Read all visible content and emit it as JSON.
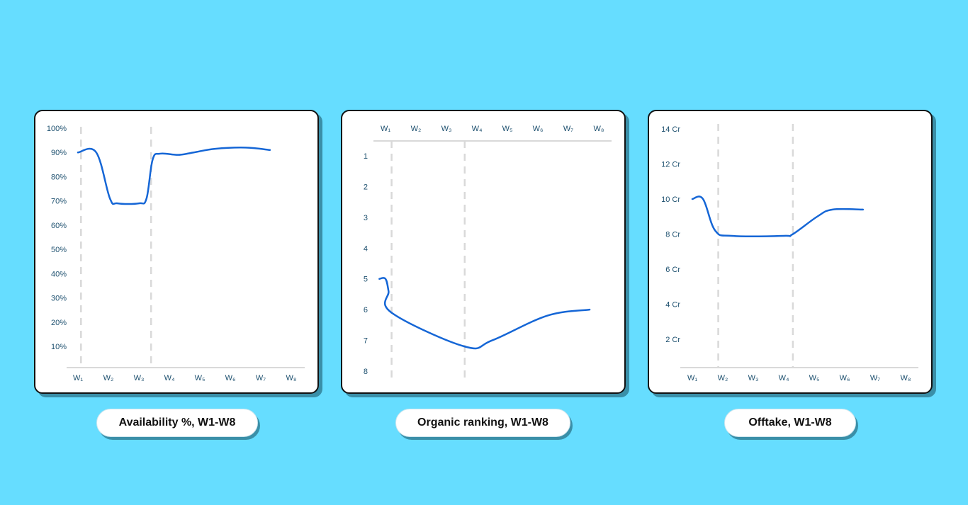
{
  "chart_data": [
    {
      "type": "line",
      "title": "Availability %, W1-W8",
      "categories": [
        "W1",
        "W2",
        "W3",
        "W4",
        "W5",
        "W6",
        "W7",
        "W8"
      ],
      "x_tick_labels": [
        "W₁",
        "W₂",
        "W₃",
        "W₄",
        "W₅",
        "W₆",
        "W₇",
        "W₈"
      ],
      "y_tick_labels": [
        "100%",
        "90%",
        "80%",
        "70%",
        "60%",
        "50%",
        "40%",
        "30%",
        "20%",
        "10%"
      ],
      "ylim": [
        0,
        100
      ],
      "y_inverted": false,
      "x_axis_position": "bottom",
      "marker_lines_at_x": [
        1.1,
        3.4
      ],
      "series": [
        {
          "values": [
            90,
            90,
            71,
            69,
            69,
            71,
            87,
            89.5,
            89,
            90,
            91.5,
            92,
            91
          ],
          "x": [
            1,
            1.6,
            2.05,
            2.3,
            3,
            3.25,
            3.45,
            3.7,
            4.3,
            4.8,
            5.5,
            6.5,
            7.3
          ]
        }
      ]
    },
    {
      "type": "line",
      "title": "Organic ranking, W1-W8",
      "categories": [
        "W1",
        "W2",
        "W3",
        "W4",
        "W5",
        "W6",
        "W7",
        "W8"
      ],
      "x_tick_labels": [
        "W₁",
        "W₂",
        "W₃",
        "W₄",
        "W₅",
        "W₆",
        "W₇",
        "W₈"
      ],
      "y_tick_labels": [
        "1",
        "2",
        "3",
        "4",
        "5",
        "6",
        "7",
        "8"
      ],
      "ylim": [
        1,
        8
      ],
      "y_inverted": true,
      "x_axis_position": "top",
      "marker_lines_at_x": [
        1.2,
        3.6
      ],
      "series": [
        {
          "values": [
            5,
            5,
            5.4,
            6.1,
            7.2,
            7.0,
            6.2,
            6.0
          ],
          "x": [
            0.8,
            1,
            1.1,
            1.2,
            3.6,
            4.5,
            6.3,
            7.7
          ]
        }
      ]
    },
    {
      "type": "line",
      "title": "Offtake, W1-W8",
      "categories": [
        "W1",
        "W2",
        "W3",
        "W4",
        "W5",
        "W6",
        "W7",
        "W8"
      ],
      "x_tick_labels": [
        "W₁",
        "W₂",
        "W₃",
        "W₄",
        "W₅",
        "W₆",
        "W₇",
        "W₈"
      ],
      "y_tick_labels": [
        "14 Cr",
        "12 Cr",
        "10 Cr",
        "8 Cr",
        "6 Cr",
        "4 Cr",
        "2 Cr"
      ],
      "ylim": [
        0,
        14
      ],
      "y_inverted": false,
      "x_axis_position": "bottom",
      "marker_lines_at_x": [
        1.85,
        4.3
      ],
      "series": [
        {
          "values": [
            10,
            10,
            8.2,
            7.9,
            7.9,
            8.0,
            9.0,
            9.4,
            9.4
          ],
          "x": [
            1,
            1.35,
            1.75,
            2.3,
            4.0,
            4.3,
            5.1,
            5.6,
            6.6
          ]
        }
      ]
    }
  ],
  "colors": {
    "background": "#66ddff",
    "line": "#1566d6",
    "axis_text": "#1c4f6e",
    "grid": "#d9d9d9"
  }
}
